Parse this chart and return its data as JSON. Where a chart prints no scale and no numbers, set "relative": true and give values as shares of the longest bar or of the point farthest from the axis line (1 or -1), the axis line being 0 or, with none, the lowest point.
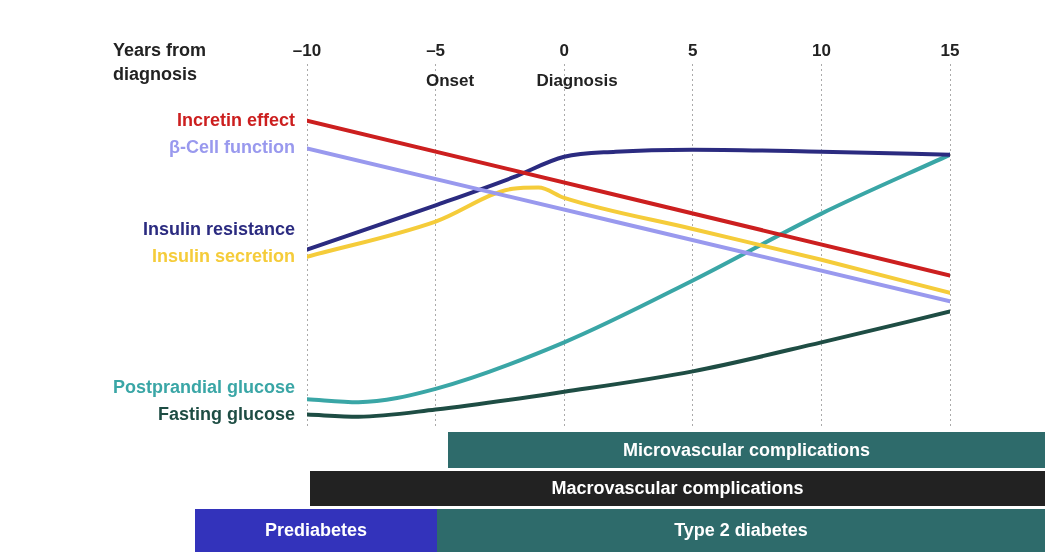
{
  "chart_data": [
    {
      "type": "line",
      "xlabel": "Years from diagnosis",
      "relative": true,
      "grid": "x",
      "legend": false,
      "xlim": [
        -10,
        15
      ],
      "xticks": [
        {
          "value": -10,
          "label": "–10"
        },
        {
          "value": -5,
          "label": "–5"
        },
        0,
        5,
        10,
        15
      ],
      "series": [
        {
          "name": "Incretin effect",
          "color": "#cc1f1f",
          "x": [
            -10,
            15
          ],
          "values": [
            1,
            0.477
          ]
        },
        {
          "name": "β-Cell function",
          "color": "#9999ee",
          "x": [
            -10,
            15
          ],
          "values": [
            0.906,
            0.39
          ]
        },
        {
          "name": "Insulin resistance",
          "color": "#2b2b80",
          "x": [
            -10,
            -5,
            -2,
            0,
            2,
            5,
            10,
            15
          ],
          "values": [
            0.564,
            0.714,
            0.808,
            0.878,
            0.895,
            0.902,
            0.895,
            0.885
          ]
        },
        {
          "name": "Insulin secretion",
          "color": "#f5cc3a",
          "x": [
            -10,
            -5,
            -2,
            -1,
            0,
            5,
            10,
            15
          ],
          "values": [
            0.54,
            0.659,
            0.77,
            0.774,
            0.739,
            0.634,
            0.53,
            0.418
          ]
        },
        {
          "name": "Postprandial glucose",
          "color": "#3aa6a6",
          "x": [
            -10,
            -8,
            -5,
            0,
            5,
            10,
            15
          ],
          "values": [
            0.059,
            0.049,
            0.094,
            0.251,
            0.46,
            0.686,
            0.885
          ]
        },
        {
          "name": "Fasting glucose",
          "color": "#1e4d44",
          "x": [
            -10,
            -8,
            -5,
            0,
            5,
            10,
            15
          ],
          "values": [
            0.007,
            0,
            0.024,
            0.084,
            0.153,
            0.251,
            0.355
          ]
        }
      ],
      "annotations": [
        "Onset",
        "Diagnosis"
      ]
    },
    {
      "type": "other",
      "annotations": [
        "Microvascular complications",
        "Macrovascular complications",
        "Prediabetes",
        "Type 2 diabetes"
      ]
    }
  ]
}
